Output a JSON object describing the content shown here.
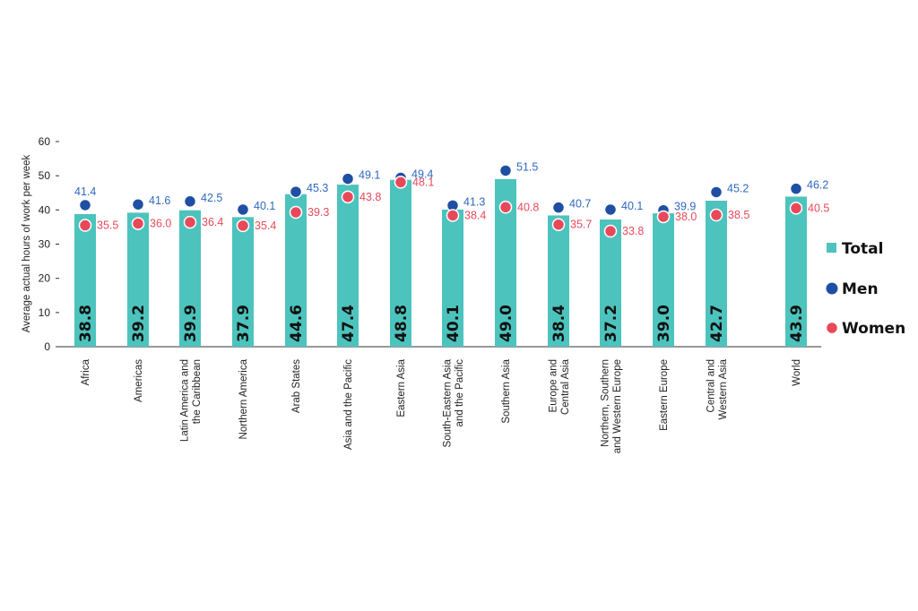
{
  "chart_data": {
    "type": "bar",
    "ylabel": "Average actual hours of work per week",
    "xlabel": "",
    "ylim": [
      0,
      60
    ],
    "yticks": [
      0,
      10,
      20,
      30,
      40,
      50,
      60
    ],
    "grid": false,
    "legend_position": "right",
    "categories": [
      "Africa",
      "Americas",
      "Latin America and the Caribbean",
      "Northern America",
      "Arab States",
      "Asia and the Pacific",
      "Eastern Asia",
      "South-Eastern Asia and the Pacific",
      "Southern Asia",
      "Europe and Central Asia",
      "Northern, Southern and Western Europe",
      "Eastern Europe",
      "Central and Western Asia",
      "World"
    ],
    "category_label_lines": [
      [
        "Africa"
      ],
      [
        "Americas"
      ],
      [
        "Latin America and",
        "the Caribbean"
      ],
      [
        "Northern America"
      ],
      [
        "Arab States"
      ],
      [
        "Asia and the Pacific"
      ],
      [
        "Eastern Asia"
      ],
      [
        "South-Eastern Asia",
        "and the Pacific"
      ],
      [
        "Southern Asia"
      ],
      [
        "Europe and",
        "Central Asia"
      ],
      [
        "Northern, Southern",
        "and Western Europe"
      ],
      [
        "Eastern Europe"
      ],
      [
        "Central and",
        "Western Asia"
      ],
      [
        "World"
      ]
    ],
    "series": [
      {
        "name": "Total",
        "kind": "bar",
        "color": "#4dc3bd",
        "values": [
          38.8,
          39.2,
          39.9,
          37.9,
          44.6,
          47.4,
          48.8,
          40.1,
          49.0,
          38.4,
          37.2,
          39.0,
          42.7,
          43.9
        ]
      },
      {
        "name": "Men",
        "kind": "point",
        "color": "#1f4fa3",
        "label_color": "#2f68c0",
        "values": [
          41.4,
          41.6,
          42.5,
          40.1,
          45.3,
          49.1,
          49.4,
          41.3,
          51.5,
          40.7,
          40.1,
          39.9,
          45.2,
          46.2
        ]
      },
      {
        "name": "Women",
        "kind": "point",
        "color": "#e8495a",
        "label_color": "#e8495a",
        "values": [
          35.5,
          36.0,
          36.4,
          35.4,
          39.3,
          43.8,
          48.1,
          38.4,
          40.8,
          35.7,
          33.8,
          38.0,
          38.5,
          40.5
        ]
      }
    ]
  }
}
